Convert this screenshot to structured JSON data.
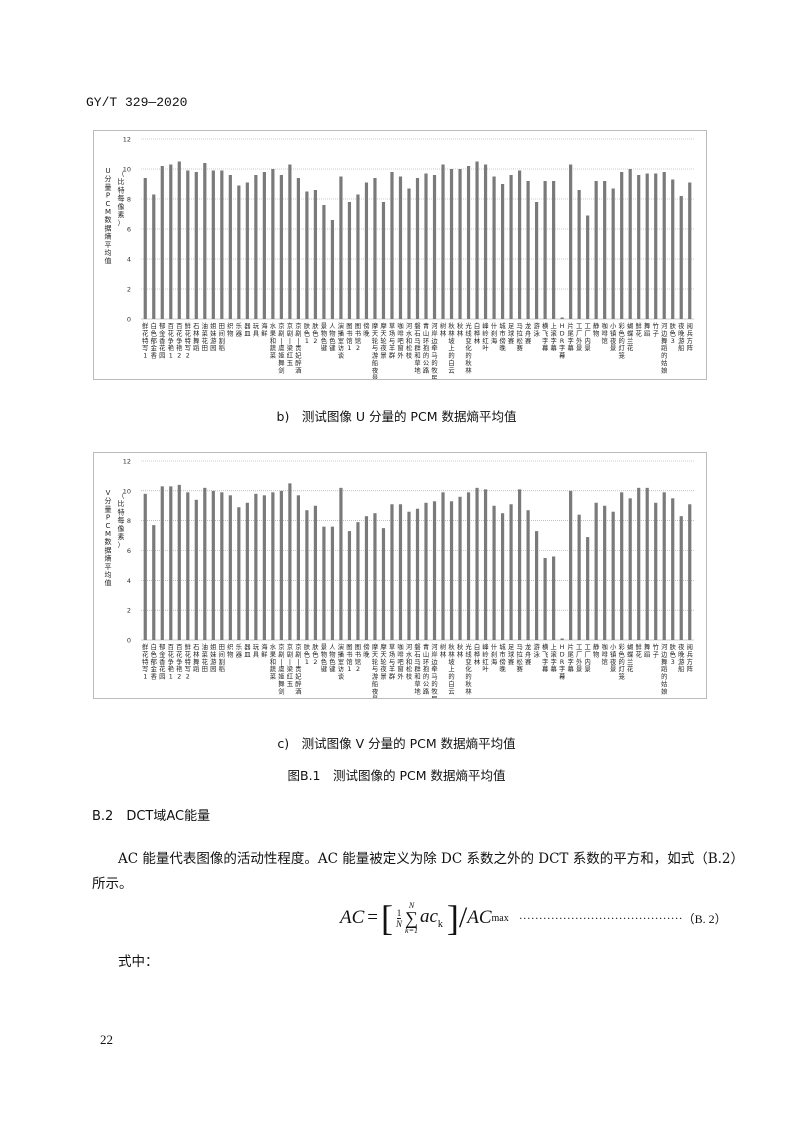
{
  "header": {
    "code": "GY/T 329—2020"
  },
  "chart_data": [
    {
      "type": "bar",
      "ylabel": "U分量PCM数据熵平均值（比特每像素）",
      "ylim": [
        0,
        12
      ],
      "yticks": [
        0,
        2,
        4,
        6,
        8,
        10,
        12
      ],
      "grid": true,
      "bar_color": "#7a7a7a",
      "categories": [
        "鲜花特写1",
        "白色郁金香",
        "郁金香花园",
        "百花争艳1",
        "百花争艳2",
        "鲜花特写2",
        "石林舞蹈",
        "油菜花田",
        "姐妹游园",
        "田间割稻",
        "织物",
        "乐器",
        "器皿",
        "玩具",
        "海鲜",
        "水果和蔬菜",
        "京剧|虞姬舞剑",
        "京剧|梁红玉",
        "京剧|贵妃醉酒",
        "肤色1",
        "肤色2",
        "景物色键",
        "人物色键",
        "演播室访谈",
        "图书馆1",
        "图书馆2",
        "傍晚",
        "摩天轮与游船夜景",
        "摩天轮夜景",
        "草场与羊群",
        "咖啡吧窗外",
        "河水和松枝",
        "磐石马群和草地",
        "青山环抱的公路",
        "河岸边牵马的牧民",
        "树林",
        "秋林坡上的白云",
        "秋林",
        "光线变化的秋林",
        "白桦林",
        "峰岭红叶",
        "什刹海",
        "城市傍晚",
        "足球赛",
        "马拉松赛",
        "龙舟赛",
        "游泳",
        "横飞字幕",
        "上滚字幕",
        "HDR字幕",
        "片尾字幕",
        "工厂外景",
        "工厂内景",
        "静物",
        "咖啡馆",
        "小镇夜景",
        "彩色的灯笼",
        "蝴蝶兰花",
        "鲜花",
        "舞蹈",
        "竹子",
        "河边舞蹈的姑娘",
        "肤色3",
        "夜晚游船",
        "阅兵方阵"
      ],
      "values": [
        9.4,
        8.3,
        10.2,
        10.3,
        10.5,
        9.9,
        9.8,
        10.4,
        9.9,
        9.9,
        9.6,
        8.9,
        9.1,
        9.6,
        9.8,
        10.0,
        9.6,
        10.3,
        9.4,
        8.5,
        8.6,
        7.6,
        6.6,
        9.5,
        7.8,
        8.3,
        9.1,
        9.4,
        7.8,
        9.8,
        9.5,
        8.7,
        9.4,
        9.7,
        9.6,
        10.3,
        10.0,
        10.0,
        10.2,
        10.5,
        10.3,
        9.5,
        9.0,
        9.6,
        9.9,
        9.2,
        7.8,
        9.2,
        9.2,
        0.1,
        10.3,
        8.6,
        6.9,
        9.2,
        9.2,
        8.7,
        9.8,
        10.0,
        9.6,
        9.7,
        9.7,
        9.8,
        9.3,
        8.2,
        9.1
      ]
    },
    {
      "type": "bar",
      "ylabel": "V分量PCM数据熵平均值（比特每像素）",
      "ylim": [
        0,
        12
      ],
      "yticks": [
        0,
        2,
        4,
        6,
        8,
        10,
        12
      ],
      "grid": true,
      "bar_color": "#7a7a7a",
      "categories": [
        "鲜花特写1",
        "白色郁金香",
        "郁金香花园",
        "百花争艳1",
        "百花争艳2",
        "鲜花特写2",
        "石林舞蹈",
        "油菜花田",
        "姐妹游园",
        "田间割稻",
        "织物",
        "乐器",
        "器皿",
        "玩具",
        "海鲜",
        "水果和蔬菜",
        "京剧|虞姬舞剑",
        "京剧|梁红玉",
        "京剧|贵妃醉酒",
        "肤色1",
        "肤色2",
        "景物色键",
        "人物色键",
        "演播室访谈",
        "图书馆1",
        "图书馆2",
        "傍晚",
        "摩天轮与游船夜景",
        "摩天轮夜景",
        "草场与羊群",
        "咖啡吧窗外",
        "河水和松枝",
        "磐石马群和草地",
        "青山环抱的公路",
        "河岸边牵马的牧民",
        "树林",
        "秋林坡上的白云",
        "秋林",
        "光线变化的秋林",
        "白桦林",
        "峰岭红叶",
        "什刹海",
        "城市傍晚",
        "足球赛",
        "马拉松赛",
        "龙舟赛",
        "游泳",
        "横飞字幕",
        "上滚字幕",
        "HDR字幕",
        "片尾字幕",
        "工厂外景",
        "工厂内景",
        "静物",
        "咖啡馆",
        "小镇夜景",
        "彩色的灯笼",
        "蝴蝶兰花",
        "鲜花",
        "舞蹈",
        "竹子",
        "河边舞蹈的姑娘",
        "肤色3",
        "夜晚游船",
        "阅兵方阵"
      ],
      "values": [
        9.8,
        7.7,
        10.3,
        10.3,
        10.4,
        9.9,
        9.4,
        10.2,
        10.0,
        9.9,
        9.7,
        8.9,
        9.2,
        9.8,
        9.7,
        9.9,
        10.0,
        10.5,
        9.7,
        8.7,
        9.0,
        7.6,
        7.6,
        10.2,
        7.3,
        7.9,
        8.3,
        8.5,
        7.5,
        9.1,
        9.1,
        8.6,
        8.8,
        9.2,
        9.3,
        9.9,
        9.3,
        9.6,
        9.9,
        10.2,
        10.1,
        9.0,
        8.5,
        9.1,
        10.1,
        8.7,
        7.3,
        5.5,
        5.6,
        0.1,
        10.0,
        8.4,
        6.9,
        9.2,
        9.0,
        8.6,
        9.9,
        9.5,
        10.2,
        10.2,
        9.2,
        9.9,
        9.5,
        8.3,
        9.1
      ]
    }
  ],
  "captions": {
    "b": "b)　测试图像 U 分量的 PCM 数据熵平均值",
    "c": "c)　测试图像 V 分量的 PCM 数据熵平均值",
    "figure": "图B.1　测试图像的 PCM 数据熵平均值"
  },
  "section": {
    "heading": "B.2　DCT域AC能量"
  },
  "paragraph": {
    "line1": "AC 能量代表图像的活动性程度。AC 能量被定义为除 DC 系数之外的 DCT 系数的平方和，如式（B.2）",
    "line2": "所示。"
  },
  "formula": {
    "lhs": "AC",
    "eq": "=",
    "frac_num": "1",
    "frac_den": "N",
    "sum_top": "N",
    "sum_sym": "∑",
    "sum_bottom": "k=1",
    "term": "ac",
    "term_sub": "k",
    "slash": "/",
    "denom": "AC",
    "denom_sub": "max",
    "dots": "·········································",
    "number": "（B. 2）"
  },
  "where": "式中：",
  "page_number": "22"
}
